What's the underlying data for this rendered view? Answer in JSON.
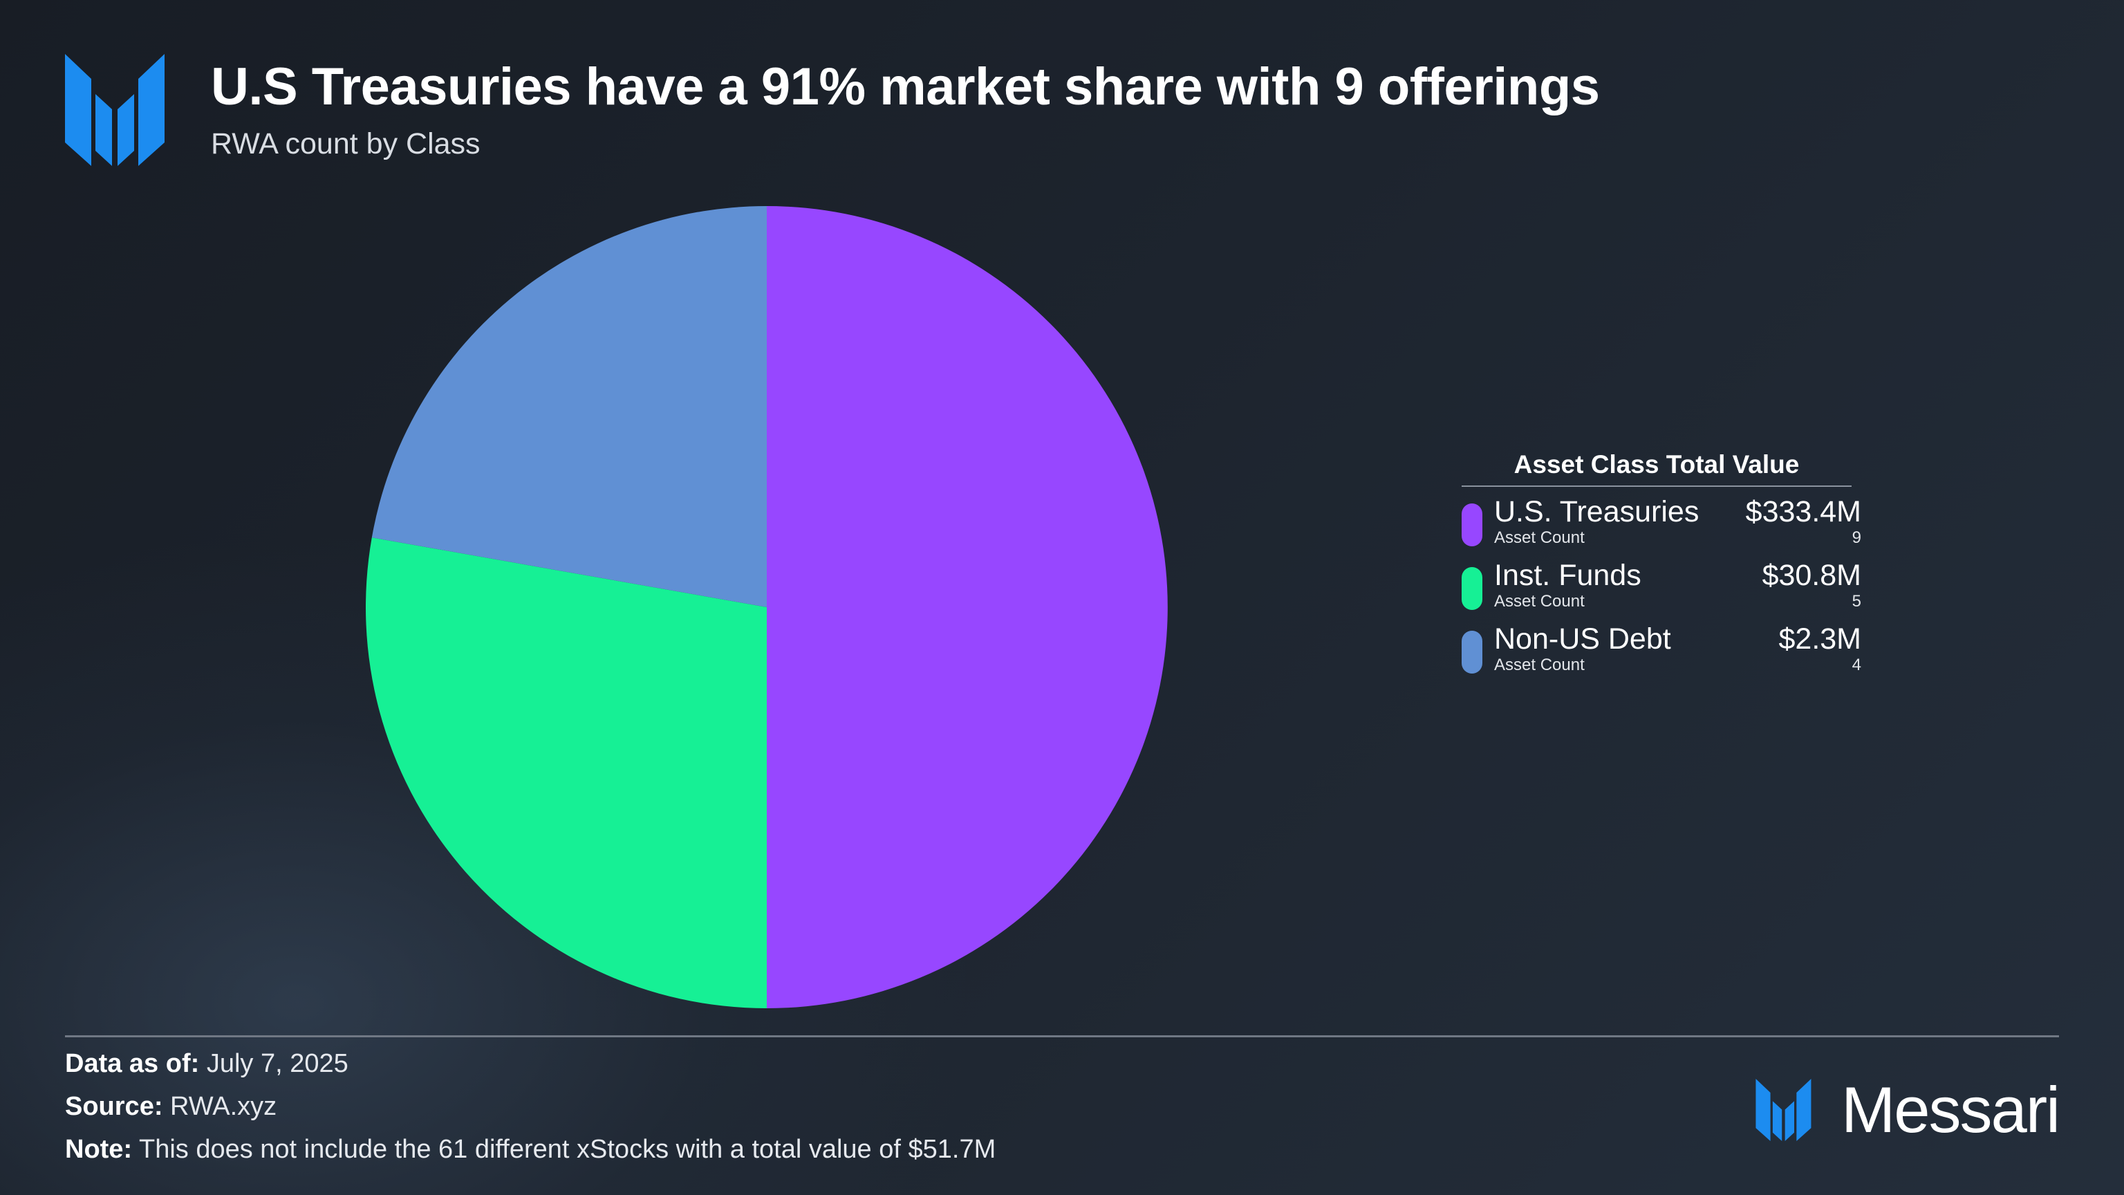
{
  "header": {
    "title": "U.S Treasuries have a 91% market share with 9 offerings",
    "subtitle": "RWA count by Class"
  },
  "colors": {
    "brand_blue": "#1c8cf0",
    "purple": "#9747ff",
    "green": "#16f095",
    "blue": "#6090d4"
  },
  "chart_data": {
    "type": "pie",
    "legend_title": "Asset Class Total Value",
    "legend_placement": "right",
    "slices": [
      {
        "label": "U.S. Treasuries",
        "value": 9,
        "total_value": "$333.4M",
        "sub_label": "Asset Count",
        "count": "9",
        "color": "#9747ff"
      },
      {
        "label": "Inst. Funds",
        "value": 5,
        "total_value": "$30.8M",
        "sub_label": "Asset Count",
        "count": "5",
        "color": "#16f095"
      },
      {
        "label": "Non-US Debt",
        "value": 4,
        "total_value": "$2.3M",
        "sub_label": "Asset Count",
        "count": "4",
        "color": "#6090d4"
      }
    ]
  },
  "footer": {
    "data_as_of_label": "Data as of:",
    "data_as_of_value": "July 7, 2025",
    "source_label": "Source:",
    "source_value": "RWA.xyz",
    "note_label": "Note:",
    "note_value": "This does not include the 61 different xStocks with a total value of $51.7M",
    "brand_name": "Messari"
  }
}
